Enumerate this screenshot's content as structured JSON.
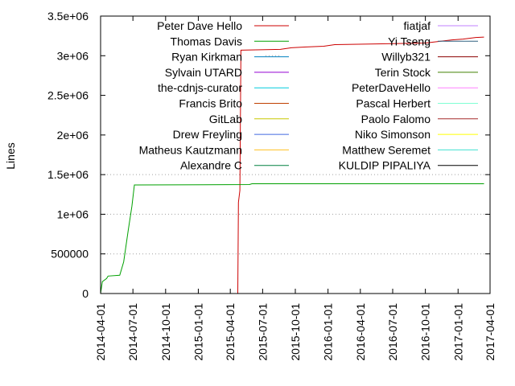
{
  "chart_data": {
    "type": "line",
    "title": "",
    "xlabel": "",
    "ylabel": "Lines",
    "xlim": [
      "2014-04-01",
      "2017-04-01"
    ],
    "ylim": [
      0,
      3500000
    ],
    "x_ticks": [
      "2014-04-01",
      "2014-07-01",
      "2014-10-01",
      "2015-01-01",
      "2015-04-01",
      "2015-07-01",
      "2015-10-01",
      "2016-01-01",
      "2016-04-01",
      "2016-07-01",
      "2016-10-01",
      "2017-01-01",
      "2017-04-01"
    ],
    "y_ticks": [
      {
        "value": 0,
        "label": "0"
      },
      {
        "value": 500000,
        "label": "500000"
      },
      {
        "value": 1000000,
        "label": "1e+06"
      },
      {
        "value": 1500000,
        "label": "1.5e+06"
      },
      {
        "value": 2000000,
        "label": "2e+06"
      },
      {
        "value": 2500000,
        "label": "2.5e+06"
      },
      {
        "value": 3000000,
        "label": "3e+06"
      },
      {
        "value": 3500000,
        "label": "3.5e+06"
      }
    ],
    "grid": "dotted horizontal at 500000, 1e+06, 1.5e+06, 3e+06",
    "legend_placement": "top, two columns inside plot",
    "series": [
      {
        "name": "Peter Dave Hello",
        "color": "#cc0000",
        "points": [
          [
            "2015-04-01",
            0
          ],
          [
            "2015-04-22",
            0
          ],
          [
            "2015-04-24",
            1150000
          ],
          [
            "2015-04-28",
            1300000
          ],
          [
            "2015-05-01",
            3070000
          ],
          [
            "2015-08-20",
            3080000
          ],
          [
            "2015-09-20",
            3100000
          ],
          [
            "2015-11-01",
            3110000
          ],
          [
            "2015-12-20",
            3120000
          ],
          [
            "2016-01-20",
            3140000
          ],
          [
            "2016-06-01",
            3150000
          ],
          [
            "2016-10-01",
            3160000
          ],
          [
            "2016-12-15",
            3200000
          ],
          [
            "2017-01-15",
            3210000
          ],
          [
            "2017-02-20",
            3230000
          ],
          [
            "2017-03-15",
            3235000
          ]
        ]
      },
      {
        "name": "Thomas Davis",
        "color": "#00a000",
        "points": [
          [
            "2014-04-01",
            0
          ],
          [
            "2014-04-06",
            150000
          ],
          [
            "2014-04-18",
            190000
          ],
          [
            "2014-04-22",
            220000
          ],
          [
            "2014-05-25",
            230000
          ],
          [
            "2014-06-05",
            400000
          ],
          [
            "2014-06-18",
            800000
          ],
          [
            "2014-06-28",
            1100000
          ],
          [
            "2014-07-05",
            1370000
          ],
          [
            "2015-05-25",
            1375000
          ],
          [
            "2015-06-01",
            1385000
          ],
          [
            "2017-03-15",
            1385000
          ]
        ]
      },
      {
        "name": "Ryan Kirkman",
        "color": "#0080c0",
        "points": [
          [
            "2014-04-01",
            0
          ],
          [
            "2017-03-15",
            0
          ]
        ]
      },
      {
        "name": "Sylvain UTARD",
        "color": "#9400d3",
        "points": [
          [
            "2014-04-01",
            0
          ],
          [
            "2017-03-15",
            0
          ]
        ]
      },
      {
        "name": "the-cdnjs-curator",
        "color": "#00ccdd",
        "points": [
          [
            "2014-04-01",
            0
          ],
          [
            "2017-03-15",
            0
          ]
        ]
      },
      {
        "name": "Francis Brito",
        "color": "#c04000",
        "points": [
          [
            "2014-04-01",
            0
          ],
          [
            "2017-03-15",
            0
          ]
        ]
      },
      {
        "name": "GitLab",
        "color": "#c8c800",
        "points": [
          [
            "2014-04-01",
            0
          ],
          [
            "2017-03-15",
            0
          ]
        ]
      },
      {
        "name": "Drew Freyling",
        "color": "#4169e1",
        "points": [
          [
            "2014-04-01",
            0
          ],
          [
            "2017-03-15",
            0
          ]
        ]
      },
      {
        "name": "Matheus Kautzmann",
        "color": "#ffc020",
        "points": [
          [
            "2014-04-01",
            0
          ],
          [
            "2017-03-15",
            0
          ]
        ]
      },
      {
        "name": "Alexandre C",
        "color": "#008040",
        "points": [
          [
            "2014-04-01",
            0
          ],
          [
            "2017-03-15",
            0
          ]
        ]
      },
      {
        "name": "fiatjaf",
        "color": "#c080ff",
        "points": [
          [
            "2014-04-01",
            0
          ],
          [
            "2017-03-15",
            0
          ]
        ]
      },
      {
        "name": "Yi Tseng",
        "color": "#306080",
        "points": [
          [
            "2014-04-01",
            0
          ],
          [
            "2017-03-15",
            0
          ]
        ]
      },
      {
        "name": "Willyb321",
        "color": "#8b0000",
        "points": [
          [
            "2014-04-01",
            0
          ],
          [
            "2017-03-15",
            0
          ]
        ]
      },
      {
        "name": "Terin Stock",
        "color": "#408000",
        "points": [
          [
            "2014-04-01",
            0
          ],
          [
            "2017-03-15",
            0
          ]
        ]
      },
      {
        "name": "PeterDaveHello",
        "color": "#ff80ff",
        "points": [
          [
            "2014-04-01",
            0
          ],
          [
            "2017-03-15",
            0
          ]
        ]
      },
      {
        "name": "Pascal Herbert",
        "color": "#7fffd4",
        "points": [
          [
            "2014-04-01",
            0
          ],
          [
            "2017-03-15",
            0
          ]
        ]
      },
      {
        "name": "Paolo Falomo",
        "color": "#a52a2a",
        "points": [
          [
            "2014-04-01",
            0
          ],
          [
            "2017-03-15",
            0
          ]
        ]
      },
      {
        "name": "Niko Simonson",
        "color": "#ffff00",
        "points": [
          [
            "2014-04-01",
            0
          ],
          [
            "2017-03-15",
            0
          ]
        ]
      },
      {
        "name": "Matthew Seremet",
        "color": "#40e0d0",
        "points": [
          [
            "2014-04-01",
            0
          ],
          [
            "2017-03-15",
            0
          ]
        ]
      },
      {
        "name": "KULDIP PIPALIYA",
        "color": "#000000",
        "points": [
          [
            "2014-04-01",
            0
          ],
          [
            "2017-03-15",
            0
          ]
        ]
      }
    ]
  }
}
